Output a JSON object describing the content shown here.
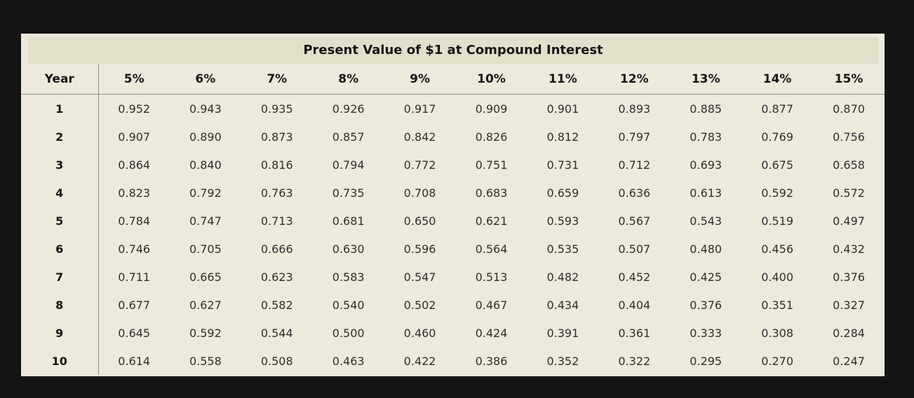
{
  "colors": {
    "page_background": "#141414",
    "table_background": "#edeadb",
    "title_band": "#e2dfca",
    "rule": "#8e8e85",
    "header_text": "#161616",
    "data_text": "#2e2e2e"
  },
  "chart_data": {
    "type": "table",
    "title": "Present Value of $1 at Compound Interest",
    "columns": [
      "Year",
      "5%",
      "6%",
      "7%",
      "8%",
      "9%",
      "10%",
      "11%",
      "12%",
      "13%",
      "14%",
      "15%"
    ],
    "rows": [
      [
        "1",
        "0.952",
        "0.943",
        "0.935",
        "0.926",
        "0.917",
        "0.909",
        "0.901",
        "0.893",
        "0.885",
        "0.877",
        "0.870"
      ],
      [
        "2",
        "0.907",
        "0.890",
        "0.873",
        "0.857",
        "0.842",
        "0.826",
        "0.812",
        "0.797",
        "0.783",
        "0.769",
        "0.756"
      ],
      [
        "3",
        "0.864",
        "0.840",
        "0.816",
        "0.794",
        "0.772",
        "0.751",
        "0.731",
        "0.712",
        "0.693",
        "0.675",
        "0.658"
      ],
      [
        "4",
        "0.823",
        "0.792",
        "0.763",
        "0.735",
        "0.708",
        "0.683",
        "0.659",
        "0.636",
        "0.613",
        "0.592",
        "0.572"
      ],
      [
        "5",
        "0.784",
        "0.747",
        "0.713",
        "0.681",
        "0.650",
        "0.621",
        "0.593",
        "0.567",
        "0.543",
        "0.519",
        "0.497"
      ],
      [
        "6",
        "0.746",
        "0.705",
        "0.666",
        "0.630",
        "0.596",
        "0.564",
        "0.535",
        "0.507",
        "0.480",
        "0.456",
        "0.432"
      ],
      [
        "7",
        "0.711",
        "0.665",
        "0.623",
        "0.583",
        "0.547",
        "0.513",
        "0.482",
        "0.452",
        "0.425",
        "0.400",
        "0.376"
      ],
      [
        "8",
        "0.677",
        "0.627",
        "0.582",
        "0.540",
        "0.502",
        "0.467",
        "0.434",
        "0.404",
        "0.376",
        "0.351",
        "0.327"
      ],
      [
        "9",
        "0.645",
        "0.592",
        "0.544",
        "0.500",
        "0.460",
        "0.424",
        "0.391",
        "0.361",
        "0.333",
        "0.308",
        "0.284"
      ],
      [
        "10",
        "0.614",
        "0.558",
        "0.508",
        "0.463",
        "0.422",
        "0.386",
        "0.352",
        "0.322",
        "0.295",
        "0.270",
        "0.247"
      ]
    ]
  }
}
